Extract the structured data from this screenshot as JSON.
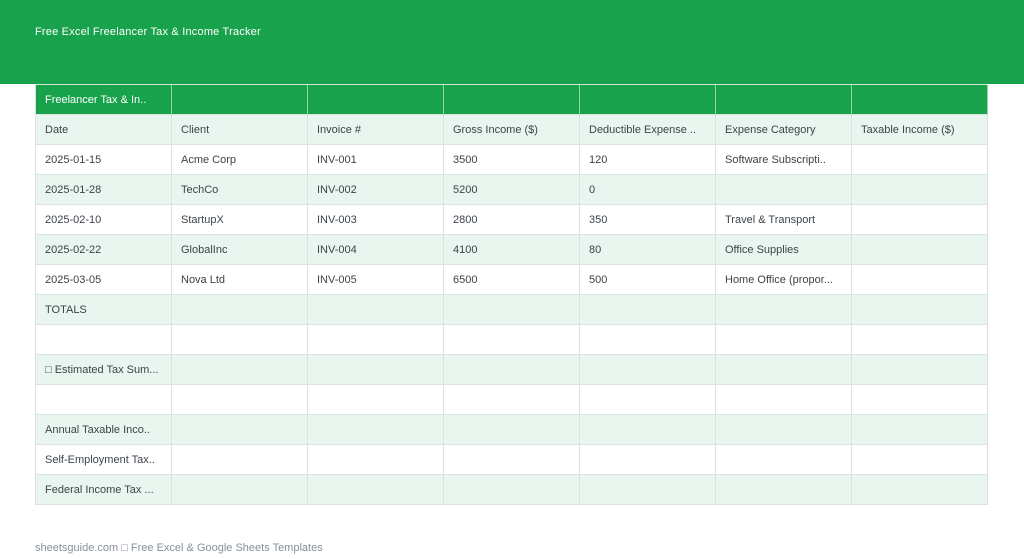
{
  "banner": {
    "title": "Free Excel Freelancer Tax & Income Tracker",
    "bg_color": "#18A24C"
  },
  "sheet": {
    "title": "Freelancer Tax & In..",
    "columns": [
      "Date",
      "Client",
      "Invoice #",
      "Gross Income ($)",
      "Deductible Expense ..",
      "Expense Category",
      "Taxable Income ($)"
    ],
    "rows": [
      [
        "2025-01-15",
        "Acme Corp",
        "INV-001",
        "3500",
        "120",
        "Software Subscripti..",
        ""
      ],
      [
        "2025-01-28",
        "TechCo",
        "INV-002",
        "5200",
        "0",
        "",
        ""
      ],
      [
        "2025-02-10",
        "StartupX",
        "INV-003",
        "2800",
        "350",
        "Travel & Transport",
        ""
      ],
      [
        "2025-02-22",
        "GlobalInc",
        "INV-004",
        "4100",
        "80",
        "Office Supplies",
        ""
      ],
      [
        "2025-03-05",
        "Nova Ltd",
        "INV-005",
        "6500",
        "500",
        "Home Office (propor...",
        ""
      ],
      [
        "TOTALS",
        "",
        "",
        "",
        "",
        "",
        ""
      ],
      [
        "",
        "",
        "",
        "",
        "",
        "",
        ""
      ],
      [
        "□ Estimated Tax Sum...",
        "",
        "",
        "",
        "",
        "",
        ""
      ],
      [
        "",
        "",
        "",
        "",
        "",
        "",
        ""
      ],
      [
        "Annual Taxable Inco..",
        "",
        "",
        "",
        "",
        "",
        ""
      ],
      [
        "Self-Employment Tax..",
        "",
        "",
        "",
        "",
        "",
        ""
      ],
      [
        "Federal Income Tax ...",
        "",
        "",
        "",
        "",
        "",
        ""
      ]
    ]
  },
  "footer": {
    "text": "sheetsguide.com □ Free Excel & Google Sheets Templates"
  },
  "colors": {
    "header_green": "#18A24C",
    "row_tint": "#E9F6EF",
    "grid_border": "#D8E4DC",
    "cell_text": "#3C434A",
    "footer_text": "#878F9C"
  }
}
